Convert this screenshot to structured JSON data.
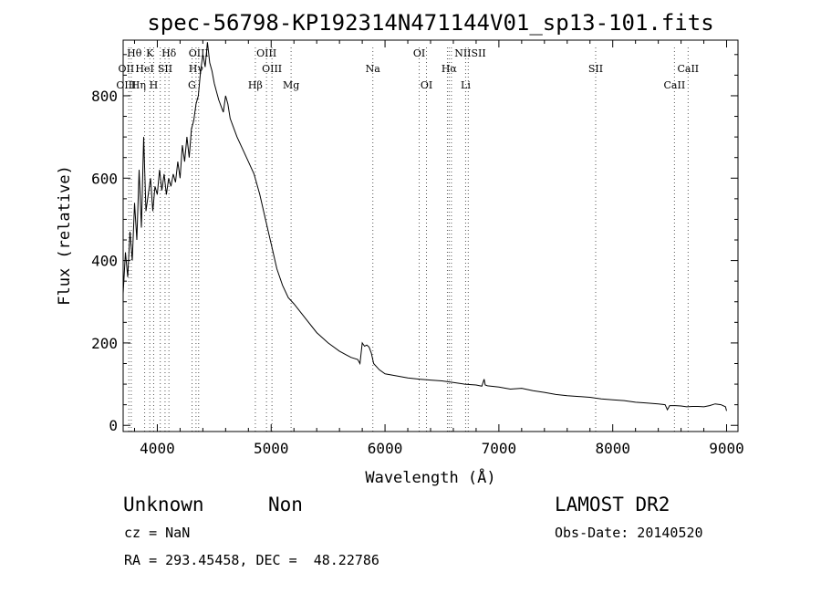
{
  "chart_data": {
    "type": "line",
    "title": "spec-56798-KP192314N471144V01_sp13-101.fits",
    "xlabel": "Wavelength (Å)",
    "ylabel": "Flux (relative)",
    "xlim": [
      3700,
      9100
    ],
    "ylim": [
      -15,
      935
    ],
    "grid": false,
    "x_ticks": [
      "4000",
      "5000",
      "6000",
      "7000",
      "8000",
      "9000"
    ],
    "y_ticks": [
      "0",
      "200",
      "400",
      "600",
      "800"
    ],
    "series": [
      {
        "points": [
          [
            3700,
            320
          ],
          [
            3720,
            420
          ],
          [
            3740,
            360
          ],
          [
            3760,
            470
          ],
          [
            3780,
            400
          ],
          [
            3800,
            540
          ],
          [
            3820,
            450
          ],
          [
            3840,
            620
          ],
          [
            3860,
            480
          ],
          [
            3880,
            700
          ],
          [
            3900,
            520
          ],
          [
            3920,
            560
          ],
          [
            3940,
            600
          ],
          [
            3960,
            520
          ],
          [
            3980,
            580
          ],
          [
            4000,
            560
          ],
          [
            4020,
            620
          ],
          [
            4040,
            570
          ],
          [
            4060,
            610
          ],
          [
            4080,
            560
          ],
          [
            4100,
            600
          ],
          [
            4120,
            580
          ],
          [
            4140,
            610
          ],
          [
            4160,
            590
          ],
          [
            4180,
            640
          ],
          [
            4200,
            600
          ],
          [
            4220,
            680
          ],
          [
            4240,
            640
          ],
          [
            4260,
            700
          ],
          [
            4280,
            650
          ],
          [
            4300,
            720
          ],
          [
            4320,
            740
          ],
          [
            4340,
            780
          ],
          [
            4360,
            800
          ],
          [
            4380,
            860
          ],
          [
            4400,
            900
          ],
          [
            4420,
            870
          ],
          [
            4440,
            930
          ],
          [
            4460,
            880
          ],
          [
            4480,
            860
          ],
          [
            4500,
            830
          ],
          [
            4520,
            810
          ],
          [
            4540,
            790
          ],
          [
            4560,
            775
          ],
          [
            4580,
            760
          ],
          [
            4600,
            800
          ],
          [
            4620,
            780
          ],
          [
            4640,
            745
          ],
          [
            4660,
            730
          ],
          [
            4680,
            715
          ],
          [
            4700,
            700
          ],
          [
            4750,
            670
          ],
          [
            4800,
            640
          ],
          [
            4850,
            610
          ],
          [
            4900,
            560
          ],
          [
            4950,
            500
          ],
          [
            5000,
            440
          ],
          [
            5050,
            380
          ],
          [
            5100,
            340
          ],
          [
            5150,
            310
          ],
          [
            5200,
            295
          ],
          [
            5300,
            260
          ],
          [
            5400,
            225
          ],
          [
            5500,
            200
          ],
          [
            5600,
            180
          ],
          [
            5700,
            165
          ],
          [
            5760,
            160
          ],
          [
            5780,
            150
          ],
          [
            5800,
            200
          ],
          [
            5820,
            192
          ],
          [
            5840,
            195
          ],
          [
            5860,
            190
          ],
          [
            5880,
            175
          ],
          [
            5900,
            150
          ],
          [
            5950,
            135
          ],
          [
            6000,
            125
          ],
          [
            6100,
            120
          ],
          [
            6200,
            115
          ],
          [
            6300,
            112
          ],
          [
            6400,
            110
          ],
          [
            6500,
            108
          ],
          [
            6600,
            104
          ],
          [
            6700,
            100
          ],
          [
            6800,
            98
          ],
          [
            6850,
            95
          ],
          [
            6870,
            112
          ],
          [
            6880,
            98
          ],
          [
            6900,
            96
          ],
          [
            7000,
            93
          ],
          [
            7100,
            88
          ],
          [
            7200,
            90
          ],
          [
            7300,
            84
          ],
          [
            7400,
            80
          ],
          [
            7500,
            75
          ],
          [
            7600,
            72
          ],
          [
            7700,
            70
          ],
          [
            7800,
            68
          ],
          [
            7900,
            64
          ],
          [
            8000,
            62
          ],
          [
            8100,
            60
          ],
          [
            8200,
            56
          ],
          [
            8300,
            54
          ],
          [
            8400,
            52
          ],
          [
            8460,
            50
          ],
          [
            8480,
            38
          ],
          [
            8500,
            48
          ],
          [
            8550,
            48
          ],
          [
            8600,
            47
          ],
          [
            8650,
            45
          ],
          [
            8700,
            46
          ],
          [
            8750,
            46
          ],
          [
            8800,
            45
          ],
          [
            8850,
            48
          ],
          [
            8900,
            52
          ],
          [
            8950,
            50
          ],
          [
            8990,
            45
          ],
          [
            9000,
            35
          ]
        ]
      }
    ],
    "line_markers": [
      {
        "label": "Hθ",
        "x": 3798,
        "row": 1,
        "anchor": "middle"
      },
      {
        "label": "K",
        "x": 3934,
        "row": 1,
        "anchor": "middle"
      },
      {
        "label": "Hδ",
        "x": 4102,
        "row": 1,
        "anchor": "middle"
      },
      {
        "label": "OIII",
        "x": 4363,
        "row": 1,
        "anchor": "middle"
      },
      {
        "label": "OIII",
        "x": 4959,
        "row": 1,
        "anchor": "middle"
      },
      {
        "label": "OI",
        "x": 6300,
        "row": 1,
        "anchor": "middle"
      },
      {
        "label": "NIISII",
        "x": 6610,
        "row": 1,
        "anchor": "start"
      },
      {
        "label": "OII",
        "x": 3727,
        "row": 2,
        "anchor": "middle"
      },
      {
        "label": "HeI",
        "x": 3889,
        "row": 2,
        "anchor": "middle"
      },
      {
        "label": "SII",
        "x": 4068,
        "row": 2,
        "anchor": "middle"
      },
      {
        "label": "Hγ",
        "x": 4340,
        "row": 2,
        "anchor": "middle"
      },
      {
        "label": "OIII",
        "x": 5007,
        "row": 2,
        "anchor": "middle"
      },
      {
        "label": "Na",
        "x": 5893,
        "row": 2,
        "anchor": "middle"
      },
      {
        "label": "Hα",
        "x": 6563,
        "row": 2,
        "anchor": "middle"
      },
      {
        "label": "SII",
        "x": 7850,
        "row": 2,
        "anchor": "middle"
      },
      {
        "label": "CaII",
        "x": 8662,
        "row": 2,
        "anchor": "middle"
      },
      {
        "label": "OIII",
        "x": 3727,
        "row": 3,
        "anchor": "middle"
      },
      {
        "label": "Hη",
        "x": 3835,
        "row": 3,
        "anchor": "middle"
      },
      {
        "label": "H",
        "x": 3968,
        "row": 3,
        "anchor": "middle"
      },
      {
        "label": "G",
        "x": 4304,
        "row": 3,
        "anchor": "middle"
      },
      {
        "label": "Hβ",
        "x": 4861,
        "row": 3,
        "anchor": "middle"
      },
      {
        "label": "Mg",
        "x": 5175,
        "row": 3,
        "anchor": "middle"
      },
      {
        "label": "OI",
        "x": 6364,
        "row": 3,
        "anchor": "middle"
      },
      {
        "label": "Li",
        "x": 6708,
        "row": 3,
        "anchor": "middle"
      },
      {
        "label": "CaII",
        "x": 8542,
        "row": 3,
        "anchor": "middle"
      }
    ],
    "extra_lines": [
      3750,
      3771,
      3889,
      3934,
      3968,
      4026,
      4068,
      4102,
      4305,
      4340,
      4363,
      4861,
      4959,
      5007,
      5175,
      5893,
      6300,
      6364,
      6548,
      6563,
      6583,
      6708,
      6731,
      7850,
      8542,
      8662
    ]
  },
  "info": {
    "class": "Unknown",
    "subclass": "Non",
    "survey": "LAMOST DR2",
    "redshift": "cz = NaN",
    "obs_date": "Obs-Date: 20140520",
    "coords": "RA = 293.45458, DEC =  48.22786"
  }
}
